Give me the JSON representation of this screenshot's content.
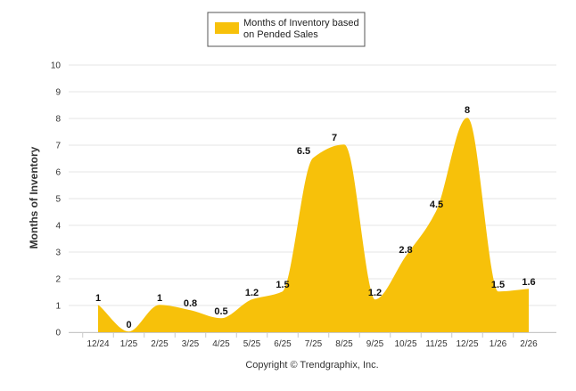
{
  "chart_data": {
    "type": "area",
    "categories": [
      "12/24",
      "1/25",
      "2/25",
      "3/25",
      "4/25",
      "5/25",
      "6/25",
      "7/25",
      "8/25",
      "9/25",
      "10/25",
      "11/25",
      "12/25",
      "1/26",
      "2/26"
    ],
    "series": [
      {
        "name": "Months of Inventory based on Pended Sales",
        "values": [
          1,
          0,
          1,
          0.8,
          0.5,
          1.2,
          1.5,
          6.5,
          7,
          1.2,
          2.8,
          4.5,
          8,
          1.5,
          1.6
        ],
        "color": "#F7C10A"
      }
    ],
    "ylabel": "Months of Inventory",
    "xlabel": "",
    "ylim": [
      0,
      10
    ],
    "yticks": [
      0,
      1,
      2,
      3,
      4,
      5,
      6,
      7,
      8,
      9,
      10
    ],
    "grid": true,
    "legend": {
      "placement": "top-center",
      "label_lines": [
        "Months of Inventory based",
        "on Pended Sales"
      ]
    }
  },
  "footer": {
    "copyright": "Copyright © Trendgraphix, Inc."
  }
}
